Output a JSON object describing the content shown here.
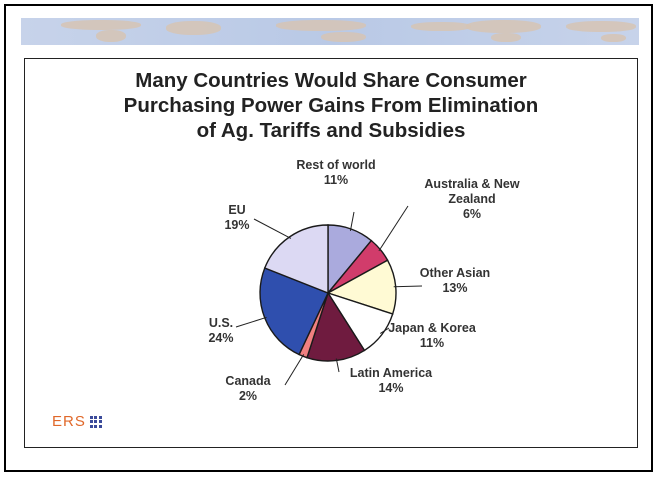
{
  "slide": {
    "title_lines": [
      "Many Countries Would Share Consumer",
      "Purchasing Power Gains From Elimination",
      "of Ag. Tariffs and Subsidies"
    ],
    "logo_text": "ERS"
  },
  "chart_data": {
    "type": "pie",
    "title": "Many Countries Would Share Consumer Purchasing Power Gains From Elimination of Ag. Tariffs and Subsidies",
    "unit": "%",
    "slices": [
      {
        "label": "Rest of world",
        "label_lines": [
          "Rest of world"
        ],
        "value": 11,
        "display": "11%",
        "color": "#aaaadd"
      },
      {
        "label": "Australia & New Zealand",
        "label_lines": [
          "Australia & New",
          "Zealand"
        ],
        "value": 6,
        "display": "6%",
        "color": "#d13c6b"
      },
      {
        "label": "Other Asian",
        "label_lines": [
          "Other Asian"
        ],
        "value": 13,
        "display": "13%",
        "color": "#fffad4"
      },
      {
        "label": "Japan & Korea",
        "label_lines": [
          "Japan & Korea"
        ],
        "value": 11,
        "display": "11%",
        "color": "#ffffff"
      },
      {
        "label": "Latin America",
        "label_lines": [
          "Latin America"
        ],
        "value": 14,
        "display": "14%",
        "color": "#6f1b3f"
      },
      {
        "label": "Canada",
        "label_lines": [
          "Canada"
        ],
        "value": 2,
        "display": "2%",
        "color": "#f08080"
      },
      {
        "label": "U.S.",
        "label_lines": [
          "U.S."
        ],
        "value": 24,
        "display": "24%",
        "color": "#2f4fae"
      },
      {
        "label": "EU",
        "label_lines": [
          "EU"
        ],
        "value": 19,
        "display": "19%",
        "color": "#dcd9f3"
      }
    ]
  }
}
